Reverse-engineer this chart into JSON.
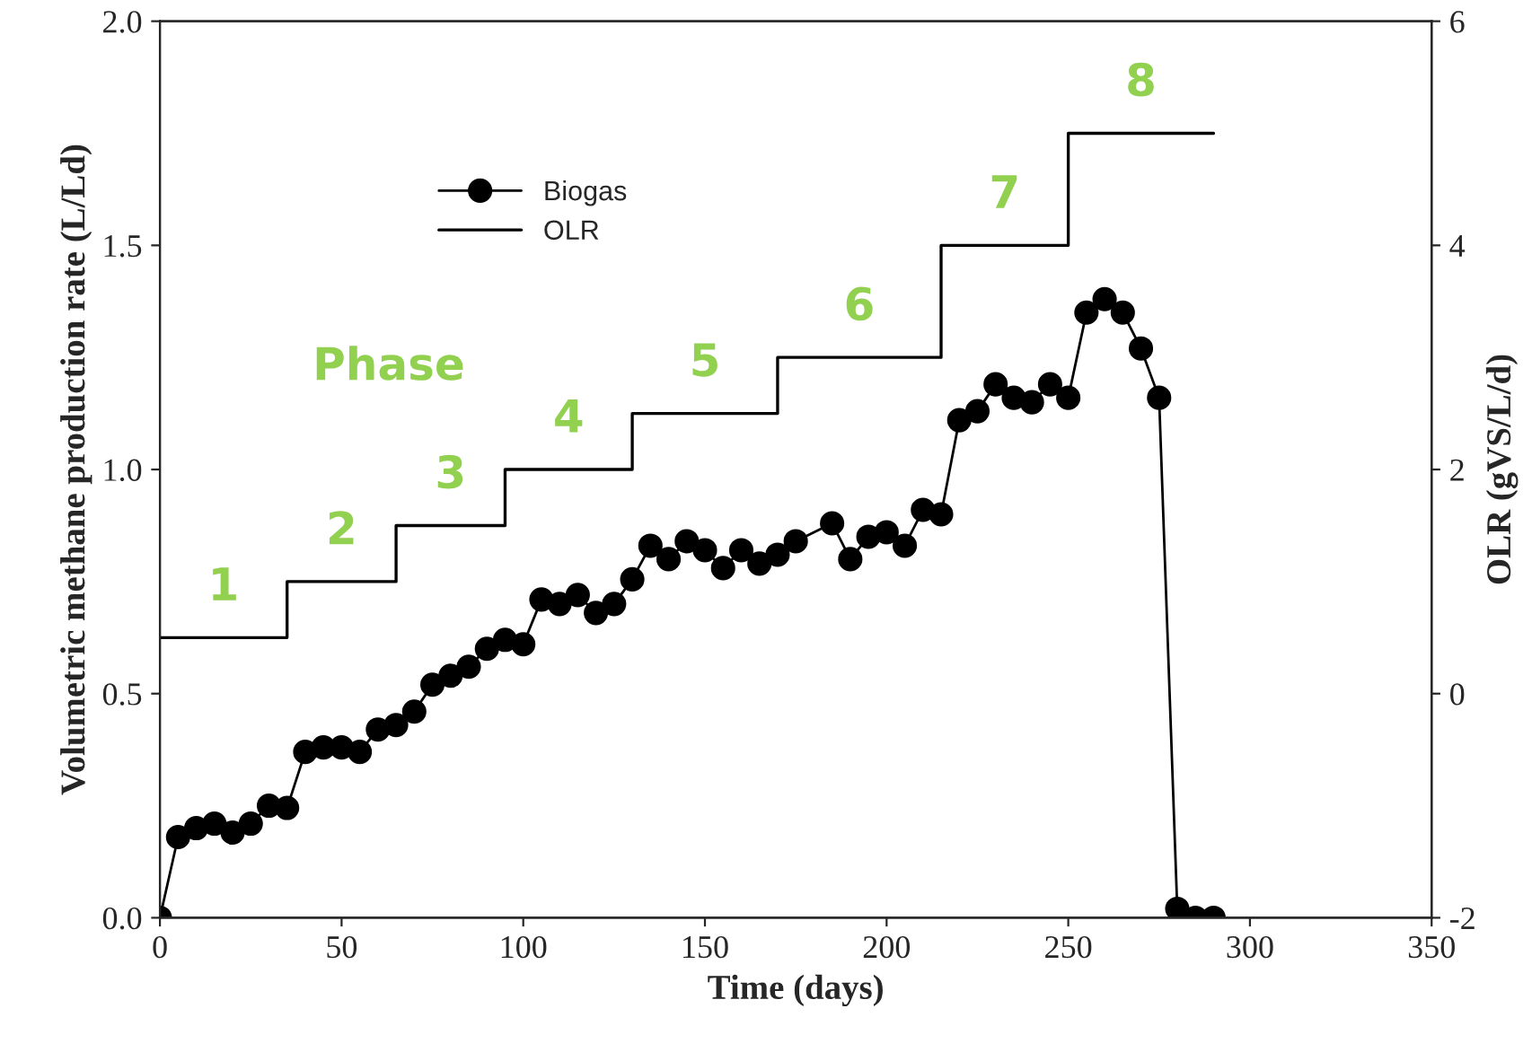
{
  "chart_data": {
    "type": "line",
    "xlabel": "Time (days)",
    "ylabel": "Volumetric methane production rate (L/Ld)",
    "y2label": "OLR (gVS/L/d)",
    "xlim": [
      0,
      350
    ],
    "xticks": [
      0,
      50,
      100,
      150,
      200,
      250,
      300,
      350
    ],
    "ylim": [
      0,
      2.0
    ],
    "yticks": [
      {
        "value": 0,
        "label": "0.0"
      },
      {
        "value": 0.5,
        "label": "0.5"
      },
      {
        "value": 1.0,
        "label": "1.0"
      },
      {
        "value": 1.5,
        "label": "1.5"
      },
      {
        "value": 2.0,
        "label": "2.0"
      }
    ],
    "y2lim": [
      -2,
      6
    ],
    "y2ticks": [
      -2,
      0,
      2,
      4,
      6
    ],
    "legend": "top left",
    "grid": false,
    "annotations": [
      "Phase",
      "1",
      "2",
      "3",
      "4",
      "5",
      "6",
      "7",
      "8"
    ],
    "series": [
      {
        "name": "Biogas",
        "marker": "circle",
        "color": "#000000",
        "x": [
          0,
          5,
          10,
          15,
          20,
          25,
          30,
          35,
          40,
          45,
          50,
          55,
          60,
          65,
          70,
          75,
          80,
          85,
          90,
          95,
          100,
          105,
          110,
          115,
          120,
          125,
          130,
          135,
          140,
          145,
          150,
          155,
          160,
          165,
          170,
          175,
          185,
          190,
          195,
          200,
          205,
          210,
          215,
          220,
          225,
          230,
          235,
          240,
          245,
          250,
          255,
          260,
          265,
          270,
          275,
          280,
          285,
          290
        ],
        "values": [
          0.0,
          0.18,
          0.2,
          0.21,
          0.19,
          0.21,
          0.25,
          0.245,
          0.37,
          0.38,
          0.38,
          0.37,
          0.42,
          0.43,
          0.46,
          0.52,
          0.54,
          0.56,
          0.6,
          0.62,
          0.61,
          0.71,
          0.7,
          0.72,
          0.68,
          0.7,
          0.755,
          0.83,
          0.8,
          0.84,
          0.82,
          0.78,
          0.82,
          0.79,
          0.81,
          0.84,
          0.88,
          0.8,
          0.85,
          0.86,
          0.83,
          0.91,
          0.9,
          1.11,
          1.13,
          1.19,
          1.16,
          1.15,
          1.19,
          1.16,
          1.35,
          1.38,
          1.35,
          1.27,
          1.16,
          0.02,
          0.0,
          0.0
        ]
      },
      {
        "name": "OLR",
        "type": "step",
        "axis": "y2",
        "marker": "none",
        "color": "#000000",
        "x": [
          0,
          35,
          65,
          95,
          130,
          170,
          215,
          250,
          290
        ],
        "values": [
          0.5,
          1.0,
          1.5,
          2.0,
          2.5,
          3.0,
          4.0,
          5.0,
          5.0
        ]
      }
    ]
  }
}
